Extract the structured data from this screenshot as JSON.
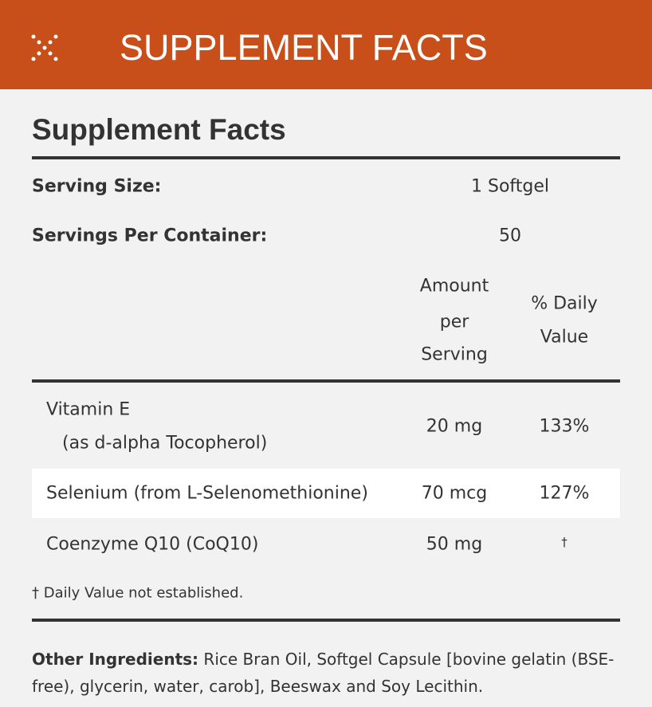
{
  "header": {
    "title": "SUPPLEMENT FACTS"
  },
  "panel": {
    "title": "Supplement Facts",
    "serving_size": {
      "label": "Serving Size:",
      "value": "1 Softgel"
    },
    "servings_per_container": {
      "label": "Servings Per Container:",
      "value": "50"
    },
    "columns": {
      "amount": [
        "Amount",
        "per",
        "Serving"
      ],
      "daily_value": [
        "% Daily",
        "Value"
      ]
    },
    "rows": [
      {
        "name": "Vitamin E",
        "detail": "(as d-alpha Tocopherol)",
        "amount": "20 mg",
        "daily_value": "133%"
      },
      {
        "name": "Selenium (from L-Selenomethionine)",
        "amount": "70 mcg",
        "daily_value": "127%"
      },
      {
        "name": "Coenzyme Q10 (CoQ10)",
        "amount": "50 mg",
        "daily_value": "†"
      }
    ],
    "footnote": "† Daily Value not established.",
    "other_ingredients": {
      "label": "Other Ingredients:",
      "text": "Rice Bran Oil, Softgel Capsule [bovine gelatin (BSE-free), glycerin, water, carob], Beeswax and Soy Lecithin."
    }
  }
}
